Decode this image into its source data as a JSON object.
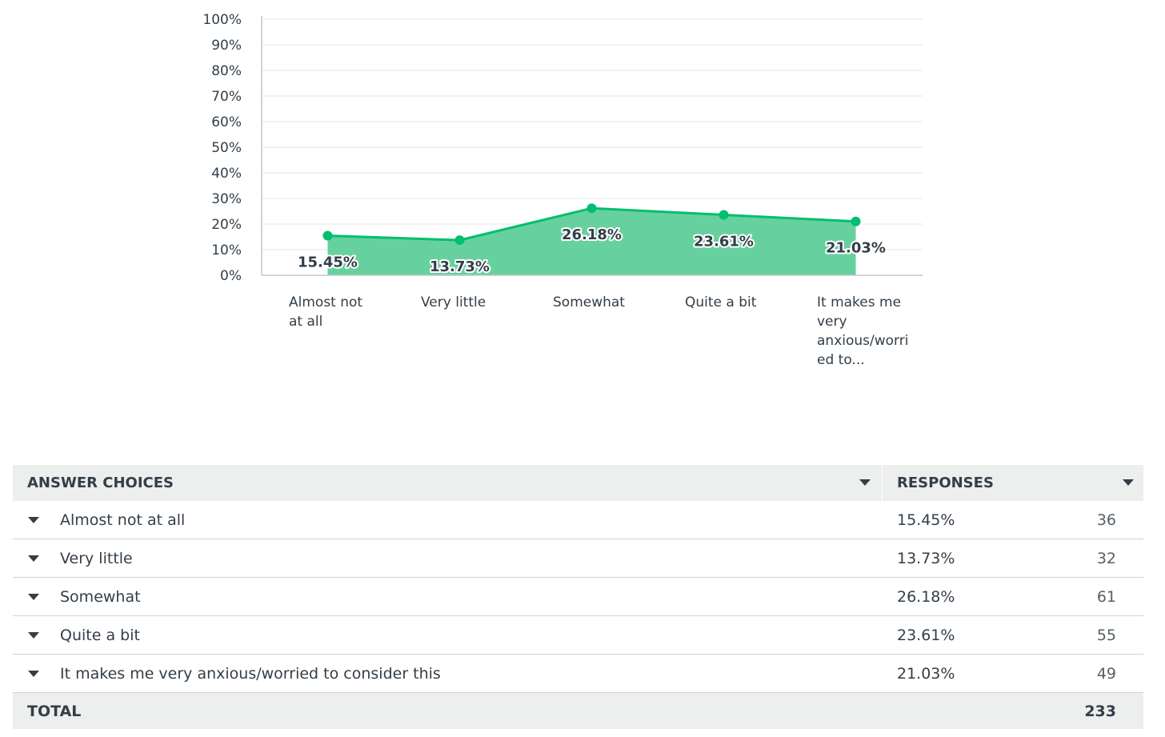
{
  "chart_data": {
    "type": "area",
    "categories": [
      "Almost not at all",
      "Very little",
      "Somewhat",
      "Quite a bit",
      "It makes me very anxious/worried to..."
    ],
    "category_label_lines": [
      [
        "Almost not",
        "at all"
      ],
      [
        "Very little"
      ],
      [
        "Somewhat"
      ],
      [
        "Quite a bit"
      ],
      [
        "It makes me",
        "very",
        "anxious/worri",
        "ed to..."
      ]
    ],
    "values": [
      15.45,
      13.73,
      26.18,
      23.61,
      21.03
    ],
    "data_labels": [
      "15.45%",
      "13.73%",
      "26.18%",
      "23.61%",
      "21.03%"
    ],
    "y_ticks": [
      "0%",
      "10%",
      "20%",
      "30%",
      "40%",
      "50%",
      "60%",
      "70%",
      "80%",
      "90%",
      "100%"
    ],
    "ylim": [
      0,
      100
    ],
    "grid": true,
    "colors": {
      "line": "#00bf6f",
      "fill": "#66d19f",
      "grid": "#e6e6e6",
      "axis": "#c4c7c9"
    }
  },
  "table": {
    "header": {
      "choices": "ANSWER CHOICES",
      "responses": "RESPONSES"
    },
    "rows": [
      {
        "choice": "Almost not at all",
        "percent": "15.45%",
        "count": "36"
      },
      {
        "choice": "Very little",
        "percent": "13.73%",
        "count": "32"
      },
      {
        "choice": "Somewhat",
        "percent": "26.18%",
        "count": "61"
      },
      {
        "choice": "Quite a bit",
        "percent": "23.61%",
        "count": "55"
      },
      {
        "choice": "It makes me very anxious/worried to consider this",
        "percent": "21.03%",
        "count": "49"
      }
    ],
    "footer": {
      "label": "TOTAL",
      "total": "233"
    }
  }
}
